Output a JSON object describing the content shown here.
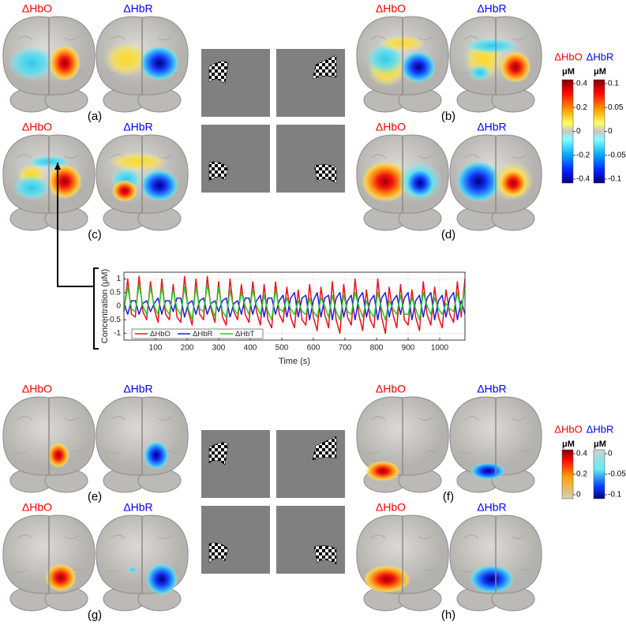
{
  "panels": [
    {
      "label": "(a)",
      "hbo": "ΔHbO",
      "hbr": "ΔHbR"
    },
    {
      "label": "(b)",
      "hbo": "ΔHbO",
      "hbr": "ΔHbR"
    },
    {
      "label": "(c)",
      "hbo": "ΔHbO",
      "hbr": "ΔHbR"
    },
    {
      "label": "(d)",
      "hbo": "ΔHbO",
      "hbr": "ΔHbR"
    },
    {
      "label": "(e)",
      "hbo": "ΔHbO",
      "hbr": "ΔHbR"
    },
    {
      "label": "(f)",
      "hbo": "ΔHbO",
      "hbr": "ΔHbR"
    },
    {
      "label": "(g)",
      "hbo": "ΔHbO",
      "hbr": "ΔHbR"
    },
    {
      "label": "(h)",
      "hbo": "ΔHbO",
      "hbr": "ΔHbR"
    }
  ],
  "colorbars": [
    {
      "title": "ΔHbO",
      "unit": "μM",
      "ticks": [
        0.4,
        0.2,
        0,
        -0.2,
        -0.4
      ]
    },
    {
      "title": "ΔHbR",
      "unit": "μM",
      "ticks": [
        0.1,
        0.05,
        0,
        -0.05,
        -0.1
      ]
    },
    {
      "title": "ΔHbO",
      "unit": "μM",
      "ticks": [
        0.4,
        0.2,
        0
      ]
    },
    {
      "title": "ΔHbR",
      "unit": "μM",
      "ticks": [
        0,
        -0.05,
        -0.1
      ]
    }
  ],
  "chart_data": {
    "type": "line",
    "xlabel": "Time (s)",
    "ylabel": "Concentration (μM)",
    "xlim": [
      0,
      1080
    ],
    "ylim": [
      -1.25,
      1.25
    ],
    "grid": true,
    "legend": "lower left",
    "xticks": [
      100,
      200,
      300,
      400,
      500,
      600,
      700,
      800,
      900,
      1000
    ],
    "yticks": [
      -1,
      -0.5,
      0,
      0.5,
      1
    ],
    "x": [
      0,
      12,
      24,
      36,
      48,
      60,
      72,
      84,
      96,
      108,
      120,
      132,
      144,
      156,
      168,
      180,
      192,
      204,
      216,
      228,
      240,
      252,
      264,
      276,
      288,
      300,
      312,
      324,
      336,
      348,
      360,
      372,
      384,
      396,
      408,
      420,
      432,
      444,
      456,
      468,
      480,
      492,
      504,
      516,
      528,
      540,
      552,
      564,
      576,
      588,
      600,
      612,
      624,
      636,
      648,
      660,
      672,
      684,
      696,
      708,
      720,
      732,
      744,
      756,
      768,
      780,
      792,
      804,
      816,
      828,
      840,
      852,
      864,
      876,
      888,
      900,
      912,
      924,
      936,
      948,
      960,
      972,
      984,
      996,
      1008,
      1020,
      1032,
      1044,
      1056,
      1068,
      1080
    ],
    "series": [
      {
        "name": "ΔHbO",
        "color": "#e8141a",
        "values": [
          -0.2,
          1.0,
          -0.3,
          -0.4,
          1.1,
          -0.2,
          -0.5,
          0.9,
          -0.1,
          -0.6,
          1.0,
          -0.3,
          -0.5,
          0.8,
          -0.4,
          -0.6,
          1.1,
          -0.2,
          -0.7,
          1.0,
          -0.3,
          -0.5,
          1.1,
          -0.1,
          -0.6,
          0.9,
          -0.4,
          -0.7,
          1.0,
          -0.2,
          -0.5,
          0.8,
          -0.3,
          -0.6,
          0.9,
          -0.2,
          -0.7,
          0.8,
          -0.5,
          -0.8,
          0.9,
          -0.3,
          -0.6,
          0.7,
          -0.4,
          -0.8,
          0.6,
          -0.5,
          -0.7,
          0.8,
          -0.4,
          -0.9,
          0.7,
          -0.3,
          -0.8,
          0.9,
          -0.5,
          -1.0,
          0.8,
          -0.4,
          -0.7,
          1.0,
          -0.3,
          -0.9,
          0.6,
          -0.5,
          -0.8,
          1.0,
          -0.4,
          -1.0,
          0.7,
          -0.3,
          -0.8,
          0.8,
          -0.5,
          -0.7,
          0.6,
          -0.4,
          -0.9,
          0.9,
          -0.3,
          -0.7,
          0.7,
          -0.4,
          -0.8,
          0.6,
          -0.3,
          -0.6,
          0.9,
          -0.4,
          1.0
        ]
      },
      {
        "name": "ΔHbR",
        "color": "#1c1ee0",
        "values": [
          0.1,
          -0.3,
          0.2,
          0.2,
          -0.3,
          0.1,
          0.2,
          -0.2,
          0.1,
          0.3,
          -0.3,
          0.2,
          0.2,
          -0.2,
          0.3,
          0.3,
          -0.4,
          0.1,
          0.2,
          -0.3,
          0.2,
          0.3,
          -0.3,
          0.1,
          0.2,
          -0.2,
          0.2,
          0.3,
          -0.4,
          0.1,
          0.2,
          -0.3,
          0.3,
          0.3,
          -0.3,
          0.2,
          0.4,
          -0.4,
          0.3,
          0.3,
          -0.3,
          0.2,
          0.4,
          -0.4,
          0.3,
          0.5,
          -0.4,
          0.3,
          0.4,
          -0.5,
          0.2,
          0.5,
          -0.4,
          0.3,
          0.4,
          -0.5,
          0.3,
          0.5,
          -0.4,
          0.2,
          0.4,
          -0.5,
          0.3,
          0.5,
          -0.4,
          0.2,
          0.4,
          -0.5,
          0.3,
          0.5,
          -0.4,
          0.2,
          0.4,
          -0.3,
          0.3,
          0.5,
          -0.5,
          0.2,
          0.4,
          -0.4,
          0.3,
          0.5,
          -0.5,
          0.2,
          0.4,
          -0.4,
          0.3,
          0.5,
          -0.5,
          0.2,
          -0.3
        ]
      },
      {
        "name": "ΔHbT",
        "color": "#2bc82b",
        "values": [
          -0.1,
          0.7,
          -0.1,
          -0.2,
          0.8,
          0.0,
          -0.3,
          0.7,
          0.0,
          -0.3,
          0.7,
          -0.1,
          -0.3,
          0.6,
          -0.1,
          -0.3,
          0.7,
          -0.1,
          -0.5,
          0.7,
          -0.1,
          -0.2,
          0.8,
          0.0,
          -0.4,
          0.7,
          -0.2,
          -0.4,
          0.6,
          -0.1,
          -0.3,
          0.5,
          0.0,
          -0.3,
          0.6,
          0.0,
          -0.3,
          0.4,
          -0.2,
          -0.5,
          0.6,
          -0.1,
          -0.2,
          0.3,
          -0.1,
          -0.3,
          0.2,
          -0.2,
          -0.3,
          0.3,
          -0.2,
          -0.4,
          0.3,
          0.0,
          -0.4,
          0.4,
          -0.2,
          -0.5,
          0.4,
          -0.2,
          -0.3,
          0.5,
          0.0,
          -0.4,
          0.2,
          -0.2,
          -0.4,
          0.5,
          -0.1,
          -0.5,
          0.2,
          -0.1,
          -0.3,
          0.4,
          -0.3,
          -0.3,
          0.3,
          -0.1,
          -0.5,
          0.5,
          0.0,
          -0.3,
          0.3,
          -0.1,
          -0.3,
          0.1,
          -0.1,
          -0.2,
          0.5,
          -0.2,
          0.7
        ]
      }
    ]
  }
}
